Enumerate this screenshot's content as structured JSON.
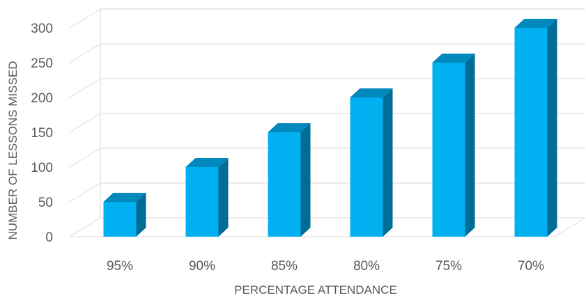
{
  "chart_data": {
    "type": "bar",
    "style": "3d-column",
    "categories": [
      "95%",
      "90%",
      "85%",
      "80%",
      "75%",
      "70%"
    ],
    "values": [
      50,
      100,
      150,
      200,
      250,
      300
    ],
    "xlabel": "PERCENTAGE ATTENDANCE",
    "ylabel": "NUMBER OF LESSONS MISSED",
    "ylim": [
      0,
      300
    ],
    "yticks": [
      "0",
      "50",
      "100",
      "150",
      "200",
      "250",
      "300"
    ],
    "grid": true,
    "legend": "none",
    "colors": {
      "front": "#00B0F0",
      "side": "#006D96",
      "top": "#0089BD",
      "grid": "#D9D9D9",
      "text": "#595959"
    }
  }
}
